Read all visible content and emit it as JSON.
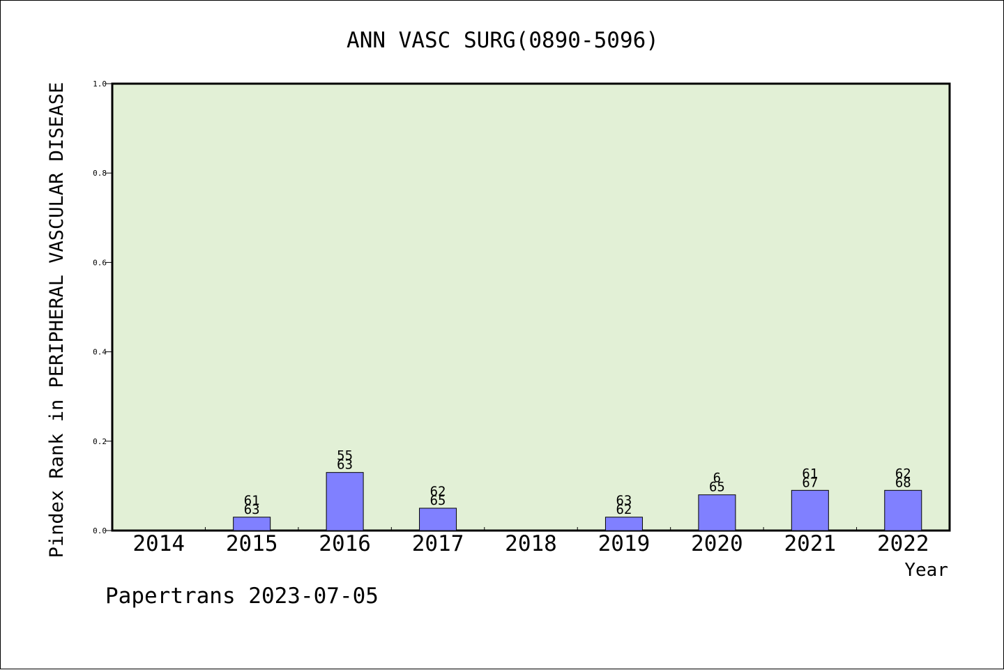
{
  "chart_data": {
    "type": "bar",
    "title": "ANN VASC SURG(0890-5096)",
    "xlabel": "Year",
    "ylabel": "Pindex Rank in PERIPHERAL VASCULAR DISEASE",
    "footer": "Papertrans 2023-07-05",
    "categories": [
      "2014",
      "2015",
      "2016",
      "2017",
      "2018",
      "2019",
      "2020",
      "2021",
      "2022"
    ],
    "values": [
      0,
      0.03,
      0.13,
      0.05,
      0,
      0.03,
      0.08,
      0.09,
      0.09
    ],
    "bar_labels": [
      null,
      [
        "61",
        "63"
      ],
      [
        "55",
        "63"
      ],
      [
        "62",
        "65"
      ],
      null,
      [
        "63",
        "62"
      ],
      [
        "6",
        "65"
      ],
      [
        "61",
        "67"
      ],
      [
        "62",
        "68"
      ]
    ],
    "ylim": [
      0,
      1.0
    ],
    "yticks": [
      "0.0",
      "0.2",
      "0.4",
      "0.6",
      "0.8",
      "1.0"
    ],
    "grid": false,
    "colors": {
      "plot_background": "#e2f0d6",
      "bar_fill": "#8080ff",
      "axis": "#000000"
    }
  }
}
